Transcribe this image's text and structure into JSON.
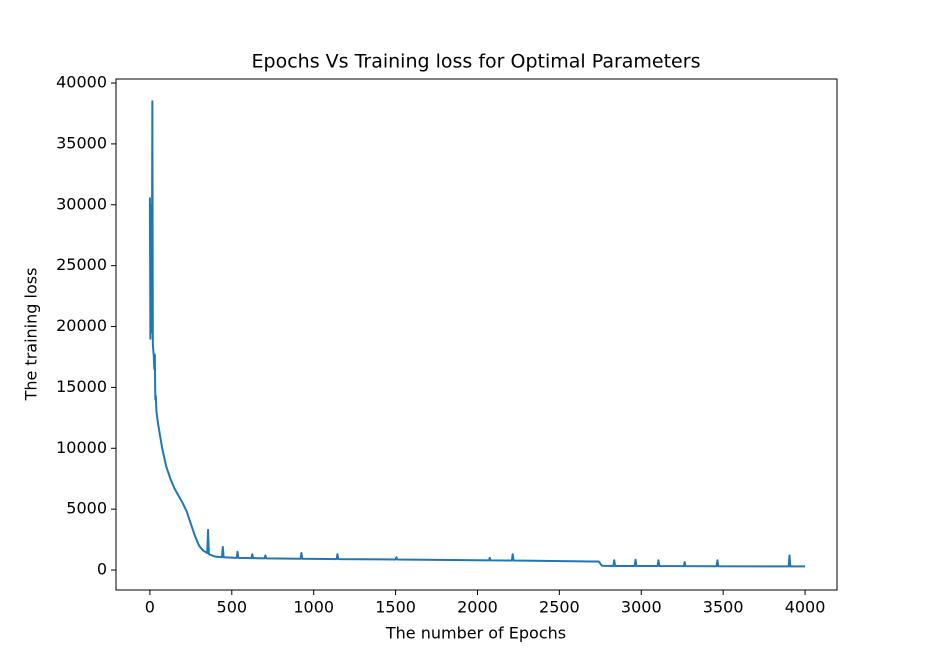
{
  "chart_data": {
    "type": "line",
    "title": "Epochs Vs Training loss for Optimal Parameters",
    "x_label": "The number of Epochs",
    "y_label": "The training loss",
    "x": [
      0,
      3,
      6,
      9,
      12,
      15,
      18,
      21,
      24,
      27,
      30,
      33,
      36,
      40,
      50,
      75,
      100,
      125,
      150,
      175,
      200,
      225,
      250,
      275,
      300,
      325,
      350,
      355,
      360,
      400,
      440,
      445,
      450,
      530,
      535,
      540,
      620,
      625,
      630,
      700,
      705,
      710,
      920,
      925,
      930,
      1140,
      1145,
      1150,
      1500,
      1505,
      1510,
      2000,
      2070,
      2075,
      2080,
      2210,
      2215,
      2220,
      2700,
      2740,
      2760,
      2830,
      2835,
      2840,
      2960,
      2965,
      2970,
      3100,
      3105,
      3110,
      3260,
      3265,
      3270,
      3460,
      3465,
      3470,
      3900,
      3905,
      3910,
      4000
    ],
    "series": [
      {
        "name": "training loss",
        "color": "#1f77b4",
        "values": [
          30600,
          19000,
          30000,
          19500,
          22000,
          38500,
          18500,
          18000,
          17500,
          16500,
          17700,
          14000,
          14300,
          13000,
          12000,
          10000,
          8500,
          7500,
          6700,
          6100,
          5500,
          4800,
          3800,
          2800,
          2000,
          1600,
          1400,
          3300,
          1300,
          1100,
          1050,
          1900,
          1050,
          1000,
          1500,
          1000,
          980,
          1300,
          980,
          960,
          1200,
          960,
          930,
          1400,
          930,
          900,
          1300,
          900,
          870,
          1050,
          870,
          800,
          790,
          1000,
          790,
          780,
          1300,
          780,
          700,
          700,
          350,
          330,
          800,
          330,
          330,
          850,
          330,
          330,
          800,
          330,
          320,
          650,
          320,
          310,
          800,
          310,
          300,
          1200,
          300,
          300
        ]
      }
    ],
    "xlim": [
      -207,
      4195
    ],
    "ylim": [
      -1640,
      40330
    ],
    "xticks": [
      0,
      500,
      1000,
      1500,
      2000,
      2500,
      3000,
      3500,
      4000
    ],
    "yticks": [
      0,
      5000,
      10000,
      15000,
      20000,
      25000,
      30000,
      35000,
      40000
    ]
  }
}
